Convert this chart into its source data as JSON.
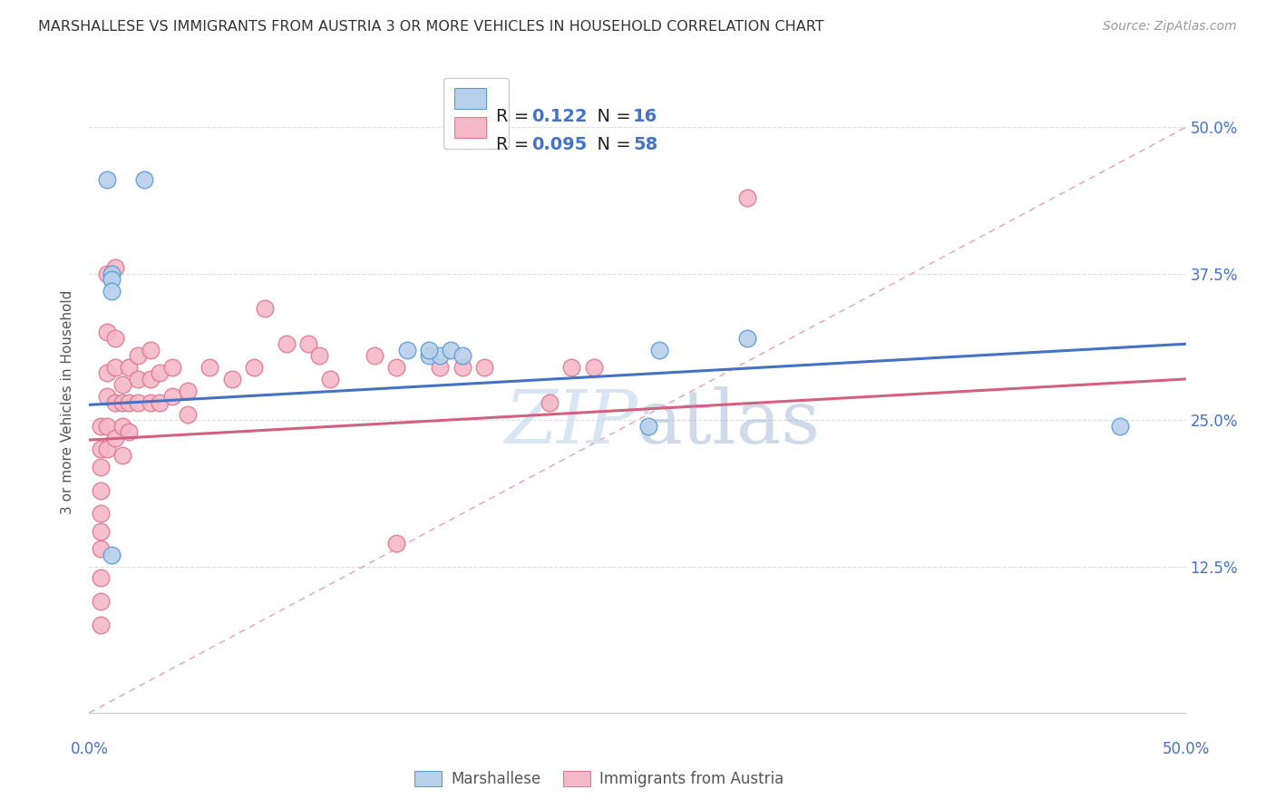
{
  "title": "MARSHALLESE VS IMMIGRANTS FROM AUSTRIA 3 OR MORE VEHICLES IN HOUSEHOLD CORRELATION CHART",
  "source": "Source: ZipAtlas.com",
  "ylabel": "3 or more Vehicles in Household",
  "xlim": [
    0.0,
    0.5
  ],
  "ylim": [
    -0.02,
    0.55
  ],
  "blue_R": "0.122",
  "blue_N": "16",
  "pink_R": "0.095",
  "pink_N": "58",
  "blue_color": "#b8d0ea",
  "pink_color": "#f5b8c8",
  "blue_edge_color": "#5b9bd5",
  "pink_edge_color": "#e07890",
  "blue_line_color": "#4472c4",
  "pink_line_color": "#d46080",
  "diag_line_color": "#e8a0b0",
  "grid_color": "#dddddd",
  "watermark_color": "#c8daee",
  "blue_line_x": [
    0.0,
    0.5
  ],
  "blue_line_y": [
    0.263,
    0.315
  ],
  "pink_line_x": [
    0.0,
    0.5
  ],
  "pink_line_y": [
    0.233,
    0.285
  ],
  "blue_scatter_x": [
    0.008,
    0.025,
    0.01,
    0.01,
    0.01,
    0.145,
    0.155,
    0.16,
    0.165,
    0.17,
    0.255,
    0.26,
    0.01,
    0.47,
    0.3,
    0.155
  ],
  "blue_scatter_y": [
    0.455,
    0.455,
    0.375,
    0.37,
    0.36,
    0.31,
    0.305,
    0.305,
    0.31,
    0.305,
    0.245,
    0.31,
    0.135,
    0.245,
    0.32,
    0.31
  ],
  "pink_scatter_x": [
    0.005,
    0.005,
    0.005,
    0.005,
    0.005,
    0.005,
    0.005,
    0.005,
    0.005,
    0.005,
    0.008,
    0.008,
    0.008,
    0.008,
    0.008,
    0.008,
    0.012,
    0.012,
    0.012,
    0.012,
    0.012,
    0.015,
    0.015,
    0.015,
    0.015,
    0.018,
    0.018,
    0.018,
    0.022,
    0.022,
    0.022,
    0.028,
    0.028,
    0.028,
    0.032,
    0.032,
    0.038,
    0.038,
    0.045,
    0.045,
    0.055,
    0.065,
    0.075,
    0.08,
    0.09,
    0.1,
    0.105,
    0.11,
    0.13,
    0.14,
    0.16,
    0.17,
    0.18,
    0.21,
    0.22,
    0.23,
    0.3,
    0.14
  ],
  "pink_scatter_y": [
    0.245,
    0.225,
    0.21,
    0.19,
    0.17,
    0.155,
    0.14,
    0.115,
    0.095,
    0.075,
    0.375,
    0.325,
    0.29,
    0.27,
    0.245,
    0.225,
    0.38,
    0.32,
    0.295,
    0.265,
    0.235,
    0.28,
    0.265,
    0.245,
    0.22,
    0.295,
    0.265,
    0.24,
    0.305,
    0.285,
    0.265,
    0.31,
    0.285,
    0.265,
    0.29,
    0.265,
    0.295,
    0.27,
    0.275,
    0.255,
    0.295,
    0.285,
    0.295,
    0.345,
    0.315,
    0.315,
    0.305,
    0.285,
    0.305,
    0.145,
    0.295,
    0.295,
    0.295,
    0.265,
    0.295,
    0.295,
    0.44,
    0.295
  ]
}
